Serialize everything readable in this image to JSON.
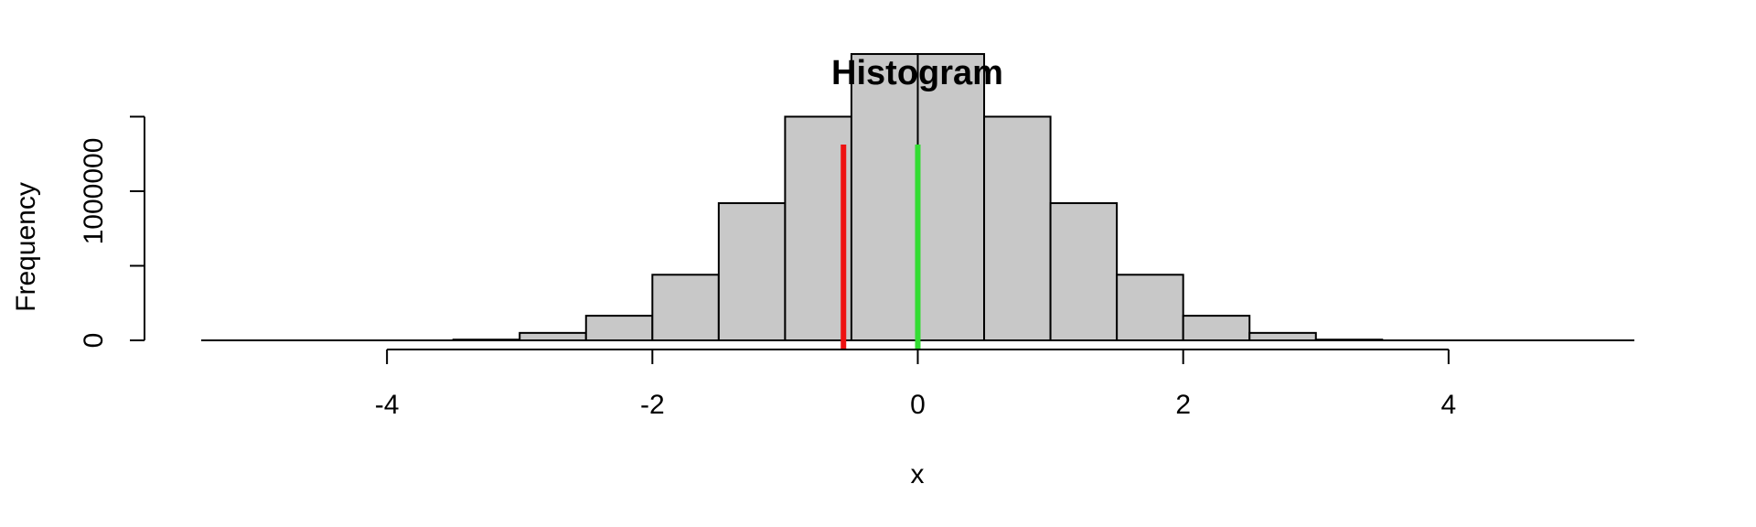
{
  "chart_data": {
    "type": "bar",
    "title": "Histogram",
    "xlabel": "x",
    "ylabel": "Frequency",
    "bar_color": "#c8c8c8",
    "bar_border_color": "#000000",
    "xlim": [
      -5.4,
      5.4
    ],
    "ylim": [
      0,
      1950000
    ],
    "x_ticks": [
      -4,
      -2,
      0,
      2,
      4
    ],
    "x_tick_labels": [
      "-4",
      "-2",
      "0",
      "2",
      "4"
    ],
    "y_ticks": [
      0,
      500000,
      1000000,
      1500000
    ],
    "y_tick_labels": [
      "0",
      "",
      "1000000",
      ""
    ],
    "bins": [
      {
        "x0": -3.5,
        "x1": -3.0,
        "count": 5000
      },
      {
        "x0": -3.0,
        "x1": -2.5,
        "count": 50000
      },
      {
        "x0": -2.5,
        "x1": -2.0,
        "count": 165000
      },
      {
        "x0": -2.0,
        "x1": -1.5,
        "count": 440000
      },
      {
        "x0": -1.5,
        "x1": -1.0,
        "count": 920000
      },
      {
        "x0": -1.0,
        "x1": -0.5,
        "count": 1500000
      },
      {
        "x0": -0.5,
        "x1": 0.0,
        "count": 1920000
      },
      {
        "x0": 0.0,
        "x1": 0.5,
        "count": 1920000
      },
      {
        "x0": 0.5,
        "x1": 1.0,
        "count": 1500000
      },
      {
        "x0": 1.0,
        "x1": 1.5,
        "count": 920000
      },
      {
        "x0": 1.5,
        "x1": 2.0,
        "count": 440000
      },
      {
        "x0": 2.0,
        "x1": 2.5,
        "count": 165000
      },
      {
        "x0": 2.5,
        "x1": 3.0,
        "count": 50000
      },
      {
        "x0": 3.0,
        "x1": 3.5,
        "count": 5000
      }
    ],
    "vlines": [
      {
        "x": -0.56,
        "color": "#ee1111"
      },
      {
        "x": 0.0,
        "color": "#33dd33"
      }
    ]
  }
}
